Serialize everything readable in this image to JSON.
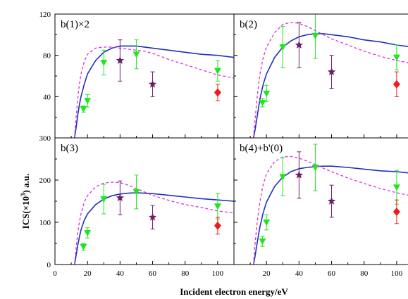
{
  "figure": {
    "xlabel": "Incident electron energy/eV",
    "ylabel": "ICS(×10³) a.u.",
    "ylabel_main": "ICS(×10",
    "ylabel_sup": "3",
    "ylabel_tail": ") a.u."
  },
  "colors": {
    "solid_line": "#1f2fbf",
    "dashed_line": "#d633d6",
    "green_markers": "#1ee61e",
    "purple_markers": "#6b1f6b",
    "red_markers": "#ee1c1c",
    "axes": "#000000"
  },
  "chart_data": [
    {
      "type": "line",
      "panel_label": "b(1)×2",
      "xlim": [
        0,
        110
      ],
      "ylim": [
        0,
        120
      ],
      "yticks": [
        40,
        80,
        120
      ],
      "yticklabels": [
        "40",
        "80",
        "120"
      ],
      "xticks": [
        0,
        20,
        40,
        60,
        80,
        100
      ],
      "xticklabels": [],
      "series": [
        {
          "style": "solid",
          "x": [
            12,
            13,
            14,
            15,
            16,
            18,
            20,
            25,
            30,
            35,
            40,
            45,
            50,
            55,
            60,
            70,
            80,
            90,
            100,
            110
          ],
          "y": [
            0,
            10,
            22,
            32,
            40,
            52,
            62,
            75,
            83,
            87,
            89,
            89,
            89,
            88,
            87,
            85,
            83,
            81,
            80,
            78
          ]
        },
        {
          "style": "dashed",
          "x": [
            12,
            13,
            14,
            15,
            16,
            18,
            20,
            25,
            30,
            35,
            40,
            45,
            50,
            55,
            60,
            70,
            80,
            90,
            100,
            110
          ],
          "y": [
            0,
            20,
            38,
            52,
            62,
            74,
            81,
            87,
            88,
            88,
            87,
            86,
            85,
            84,
            82,
            76,
            71,
            66,
            61,
            58
          ]
        },
        {
          "style": "down-triangle",
          "x": [
            17.5,
            20,
            30,
            50,
            100
          ],
          "y": [
            28,
            36,
            73,
            81,
            65
          ],
          "yerr": [
            3,
            6,
            12,
            14,
            10
          ]
        },
        {
          "style": "star",
          "x": [
            40,
            60
          ],
          "y": [
            75,
            52
          ],
          "yerr": [
            20,
            12
          ]
        },
        {
          "style": "diamond",
          "x": [
            100
          ],
          "y": [
            44
          ],
          "yerr": [
            8
          ]
        }
      ]
    },
    {
      "type": "line",
      "panel_label": "b(2)",
      "xlim": [
        0,
        110
      ],
      "ylim": [
        0,
        120
      ],
      "yticks": [
        40,
        80,
        120
      ],
      "yticklabels": [],
      "xticks": [
        0,
        20,
        40,
        60,
        80,
        100
      ],
      "xticklabels": [],
      "series": [
        {
          "style": "solid",
          "x": [
            12,
            13,
            14,
            15,
            16,
            18,
            20,
            25,
            30,
            35,
            40,
            45,
            50,
            55,
            60,
            70,
            80,
            90,
            100,
            110
          ],
          "y": [
            0,
            8,
            18,
            28,
            38,
            52,
            62,
            78,
            88,
            94,
            98,
            100,
            101,
            101,
            100,
            98,
            95,
            93,
            90,
            88
          ]
        },
        {
          "style": "dashed",
          "x": [
            12,
            13,
            14,
            15,
            16,
            18,
            20,
            25,
            30,
            35,
            40,
            45,
            50,
            55,
            60,
            70,
            80,
            90,
            100,
            110
          ],
          "y": [
            0,
            18,
            35,
            50,
            62,
            78,
            88,
            102,
            110,
            112,
            111,
            108,
            104,
            100,
            96,
            90,
            84,
            79,
            75,
            72
          ]
        },
        {
          "style": "down-triangle",
          "x": [
            17.5,
            20,
            30,
            50,
            100
          ],
          "y": [
            34,
            43,
            88,
            99,
            78
          ],
          "yerr": [
            4,
            8,
            20,
            22,
            12
          ]
        },
        {
          "style": "star",
          "x": [
            40,
            60
          ],
          "y": [
            90,
            64
          ],
          "yerr": [
            22,
            16
          ]
        },
        {
          "style": "diamond",
          "x": [
            100
          ],
          "y": [
            52
          ],
          "yerr": [
            12
          ]
        }
      ]
    },
    {
      "type": "line",
      "panel_label": "b(3)",
      "xlim": [
        0,
        110
      ],
      "ylim": [
        0,
        300
      ],
      "yticks": [
        0,
        100,
        200,
        300
      ],
      "yticklabels": [
        "0",
        "100",
        "200",
        "300"
      ],
      "xticks": [
        0,
        20,
        40,
        60,
        80,
        100
      ],
      "xticklabels": [
        "0",
        "20",
        "40",
        "60",
        "80",
        "100"
      ],
      "series": [
        {
          "style": "solid",
          "x": [
            12,
            13,
            14,
            15,
            16,
            18,
            20,
            25,
            30,
            35,
            40,
            45,
            50,
            55,
            60,
            70,
            80,
            90,
            100,
            110
          ],
          "y": [
            0,
            22,
            45,
            65,
            82,
            105,
            120,
            142,
            155,
            163,
            167,
            169,
            170,
            169,
            168,
            164,
            160,
            156,
            153,
            150
          ]
        },
        {
          "style": "dashed",
          "x": [
            12,
            13,
            14,
            15,
            16,
            18,
            20,
            25,
            30,
            35,
            40,
            45,
            50,
            55,
            60,
            70,
            80,
            90,
            100,
            110
          ],
          "y": [
            0,
            40,
            75,
            100,
            120,
            148,
            163,
            184,
            193,
            195,
            194,
            188,
            180,
            172,
            164,
            152,
            142,
            135,
            127,
            122
          ]
        },
        {
          "style": "down-triangle",
          "x": [
            17.5,
            20,
            30,
            50,
            100
          ],
          "y": [
            42,
            75,
            155,
            172,
            138
          ],
          "yerr": [
            8,
            12,
            35,
            40,
            30
          ]
        },
        {
          "style": "star",
          "x": [
            40,
            60
          ],
          "y": [
            158,
            112
          ],
          "yerr": [
            40,
            28
          ]
        },
        {
          "style": "diamond",
          "x": [
            100
          ],
          "y": [
            92
          ],
          "yerr": [
            20
          ]
        }
      ]
    },
    {
      "type": "line",
      "panel_label": "b(4)+b'(0)",
      "xlim": [
        0,
        110
      ],
      "ylim": [
        0,
        300
      ],
      "yticks": [
        0,
        100,
        200,
        300
      ],
      "yticklabels": [],
      "xticks": [
        0,
        20,
        40,
        60,
        80,
        100
      ],
      "xticklabels": [
        "20",
        "40",
        "60",
        "80",
        "100"
      ],
      "xticklabel_values": [
        20,
        40,
        60,
        80,
        100
      ],
      "series": [
        {
          "style": "solid",
          "x": [
            12,
            13,
            14,
            15,
            16,
            18,
            20,
            25,
            30,
            35,
            40,
            45,
            50,
            55,
            60,
            70,
            80,
            90,
            100,
            110
          ],
          "y": [
            0,
            20,
            45,
            68,
            90,
            123,
            148,
            185,
            207,
            220,
            227,
            230,
            232,
            233,
            233,
            230,
            226,
            222,
            220,
            216
          ]
        },
        {
          "style": "dashed",
          "x": [
            12,
            13,
            14,
            15,
            16,
            18,
            20,
            25,
            30,
            35,
            40,
            45,
            50,
            55,
            60,
            70,
            80,
            90,
            100,
            110
          ],
          "y": [
            0,
            50,
            90,
            122,
            150,
            190,
            215,
            244,
            255,
            256,
            252,
            245,
            237,
            228,
            220,
            205,
            192,
            180,
            170,
            162
          ]
        },
        {
          "style": "down-triangle",
          "x": [
            17.5,
            20,
            30,
            50,
            100
          ],
          "y": [
            55,
            100,
            208,
            230,
            183
          ],
          "yerr": [
            12,
            18,
            45,
            55,
            40
          ]
        },
        {
          "style": "star",
          "x": [
            40,
            60
          ],
          "y": [
            212,
            150
          ],
          "yerr": [
            55,
            38
          ]
        },
        {
          "style": "diamond",
          "x": [
            100
          ],
          "y": [
            125
          ],
          "yerr": [
            28
          ]
        }
      ]
    }
  ]
}
